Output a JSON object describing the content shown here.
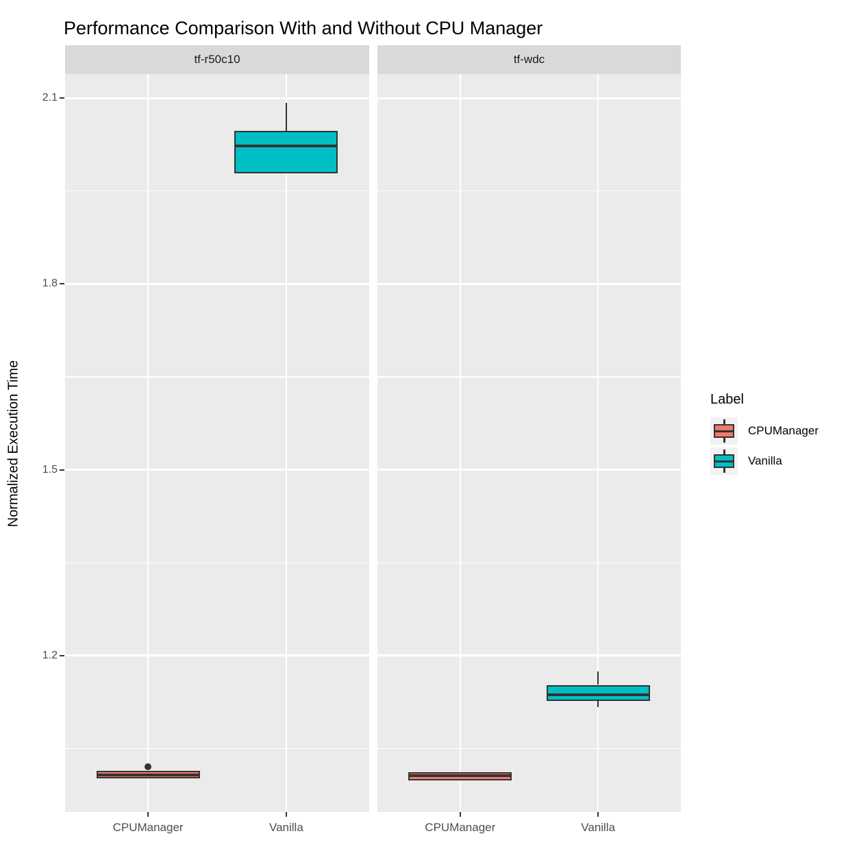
{
  "chart_data": {
    "type": "boxplot",
    "title": "Performance Comparison With and Without CPU Manager",
    "xlabel": "",
    "ylabel": "Normalized Execution Time",
    "y_ticks": [
      2.1,
      1.8,
      1.5,
      1.2
    ],
    "y_minor_ticks": [
      1.95,
      1.65,
      1.35,
      1.05
    ],
    "ylim": [
      0.948,
      2.14
    ],
    "grid": "on",
    "legend_position": "right",
    "facets": [
      {
        "label": "tf-r50c10",
        "categories": [
          "CPUManager",
          "Vanilla"
        ],
        "boxes": [
          {
            "category": "CPUManager",
            "group": "CPUManager",
            "min": 1.002,
            "q1": 1.002,
            "median": 1.008,
            "q3": 1.014,
            "max": 1.014,
            "outliers": [
              1.021
            ]
          },
          {
            "category": "Vanilla",
            "group": "Vanilla",
            "min": 1.978,
            "q1": 1.978,
            "median": 2.023,
            "q3": 2.047,
            "max": 2.092,
            "outliers": []
          }
        ]
      },
      {
        "label": "tf-wdc",
        "categories": [
          "CPUManager",
          "Vanilla"
        ],
        "boxes": [
          {
            "category": "CPUManager",
            "group": "CPUManager",
            "min": 0.999,
            "q1": 0.999,
            "median": 1.006,
            "q3": 1.012,
            "max": 1.012,
            "outliers": []
          },
          {
            "category": "Vanilla",
            "group": "Vanilla",
            "min": 1.117,
            "q1": 1.127,
            "median": 1.137,
            "q3": 1.153,
            "max": 1.175,
            "outliers": []
          }
        ]
      }
    ],
    "legend": {
      "title": "Label",
      "items": [
        {
          "label": "CPUManager",
          "color": "#F8766D"
        },
        {
          "label": "Vanilla",
          "color": "#00BFC4"
        }
      ]
    },
    "colors": {
      "cpumanager": "#F8766D",
      "vanilla": "#00BFC4",
      "box_border": "#333333",
      "panel_background": "#EBEBEB",
      "strip_background": "#D9D9D9",
      "gridline": "#FFFFFF",
      "axis_text": "#4D4D4D"
    }
  }
}
